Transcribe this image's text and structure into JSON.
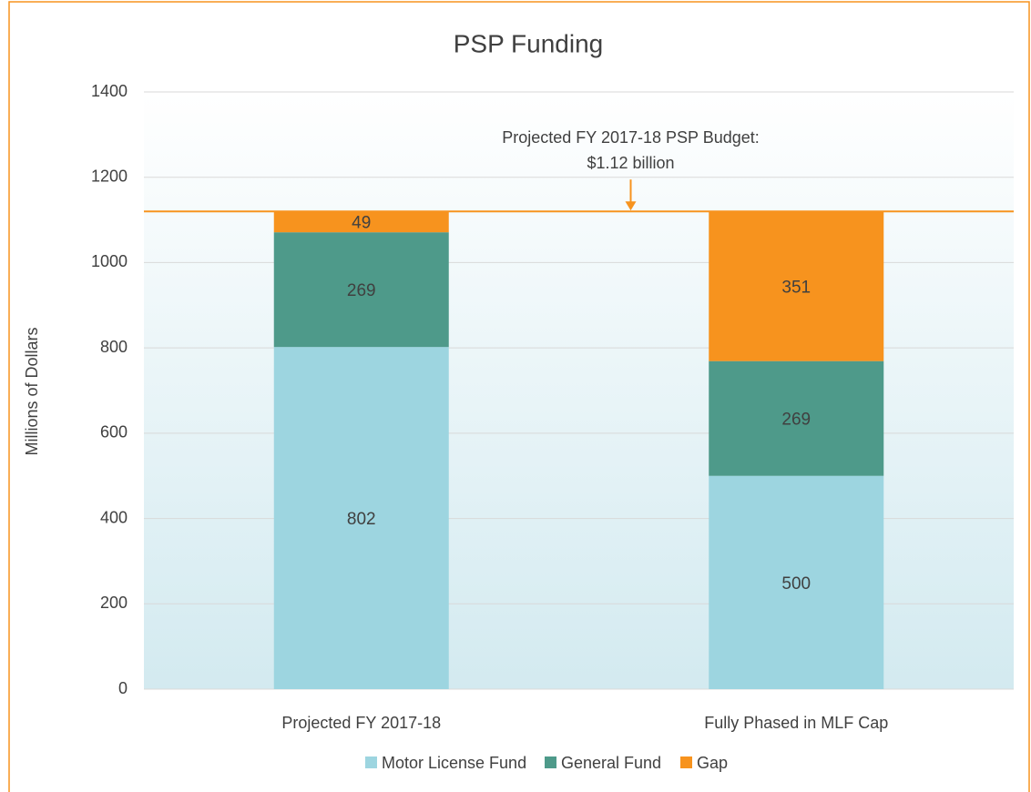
{
  "chart_data": {
    "type": "stacked_bar",
    "title": "PSP Funding",
    "y_label": "Millions of Dollars",
    "categories": [
      "Projected FY 2017-18",
      "Fully Phased in MLF Cap"
    ],
    "series": [
      {
        "name": "Motor License Fund",
        "color": "#9dd5e0",
        "values": [
          802,
          500
        ]
      },
      {
        "name": "General Fund",
        "color": "#4e9a8a",
        "values": [
          269,
          269
        ]
      },
      {
        "name": "Gap",
        "color": "#f7931e",
        "values": [
          49,
          351
        ]
      }
    ],
    "reference_line": {
      "value": 1120,
      "color": "#f7931e",
      "label": [
        "Projected FY 2017-18 PSP Budget:",
        "$1.12 billion"
      ]
    },
    "ylim": [
      0,
      1400
    ],
    "yticks": [
      0,
      200,
      400,
      600,
      800,
      1000,
      1200,
      1400
    ],
    "grid": true,
    "legend": "bottom"
  }
}
